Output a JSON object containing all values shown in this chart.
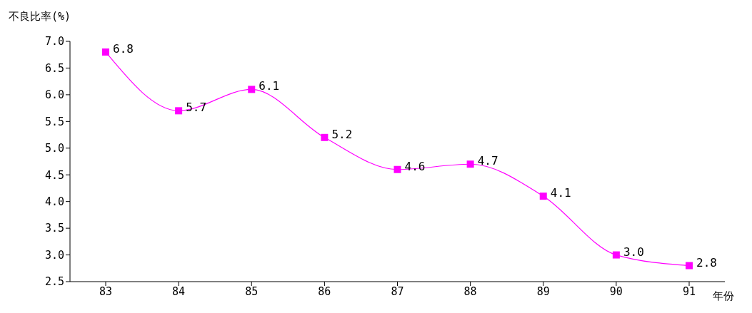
{
  "chart_data": {
    "type": "line",
    "ylabel": "不良比率(%)",
    "xlabel": "年份",
    "categories": [
      "83",
      "84",
      "85",
      "86",
      "87",
      "88",
      "89",
      "90",
      "91"
    ],
    "series": [
      {
        "color": "#ff00ff",
        "values": [
          6.8,
          5.7,
          6.1,
          5.2,
          4.6,
          4.7,
          4.1,
          3.0,
          2.8
        ],
        "value_labels": [
          "6.8",
          "5.7",
          "6.1",
          "5.2",
          "4.6",
          "4.7",
          "4.1",
          "3.0",
          "2.8"
        ]
      }
    ],
    "ylim": [
      2.5,
      7.0
    ],
    "yticks": [
      {
        "value": 2.5,
        "label": "2.5"
      },
      {
        "value": 3,
        "label": "3.0"
      },
      {
        "value": 3.5,
        "label": "3.5"
      },
      {
        "value": 4,
        "label": "4.0"
      },
      {
        "value": 4.5,
        "label": "4.5"
      },
      {
        "value": 5,
        "label": "5.0"
      },
      {
        "value": 5.5,
        "label": "5.5"
      },
      {
        "value": 6,
        "label": "6.0"
      },
      {
        "value": 6.5,
        "label": "6.5"
      },
      {
        "value": 7,
        "label": "7.0"
      }
    ],
    "marker": "square",
    "line_style": "solid",
    "grid": false
  }
}
